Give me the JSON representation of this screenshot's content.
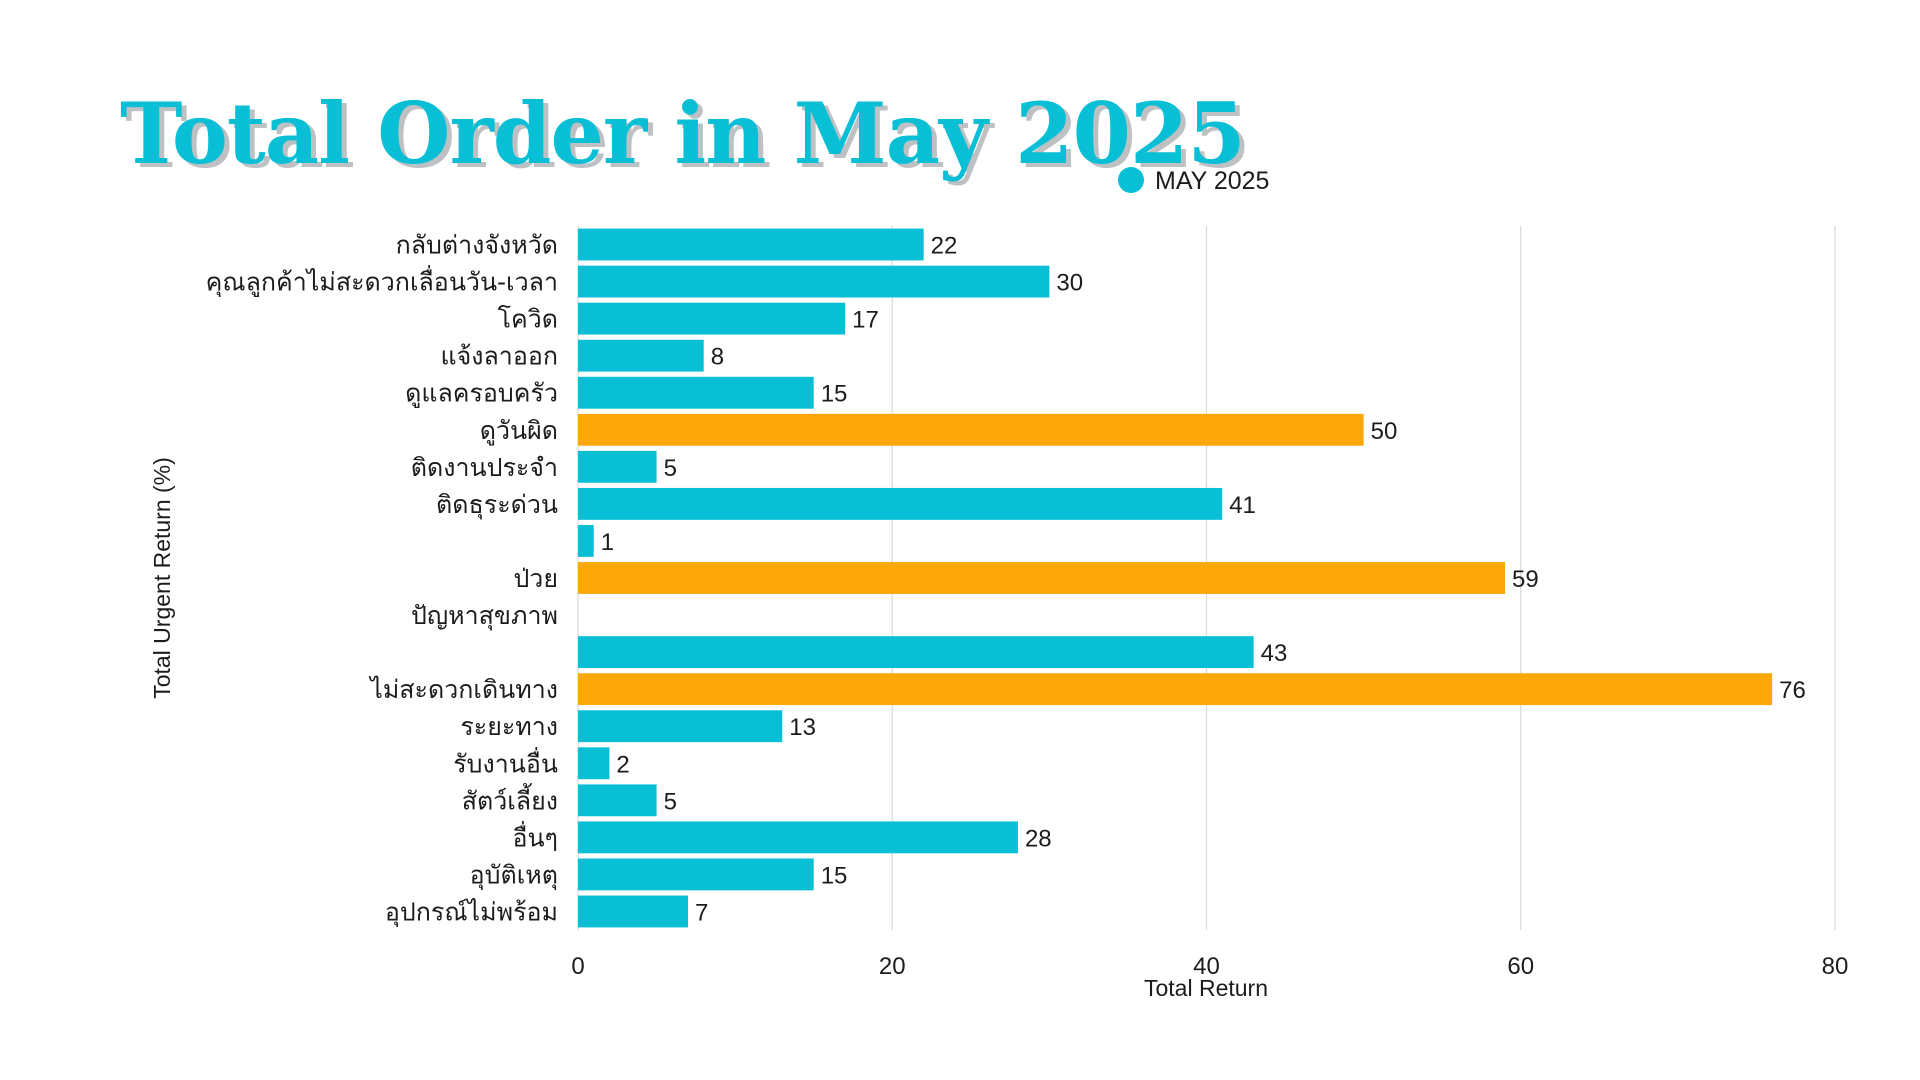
{
  "colors": {
    "primary": "#08bfd6",
    "highlight": "#fba708",
    "text": "#1c1c1c",
    "grid": "#d9d9d9"
  },
  "chart_data": {
    "type": "bar",
    "orientation": "horizontal",
    "title": "Total Order in May 2025",
    "xlabel": "Total Return",
    "ylabel": "Total Urgent Return (%)",
    "legend": {
      "position": "top-right",
      "entries": [
        "MAY 2025"
      ]
    },
    "xlim": [
      0,
      80
    ],
    "xticks": [
      0,
      20,
      40,
      60,
      80
    ],
    "grid": true,
    "categories": [
      "กลับต่างจังหวัด",
      "คุณลูกค้าไม่สะดวกเลื่อนวัน-เวลา",
      "โควิด",
      "แจ้งลาออก",
      "ดูแลครอบครัว",
      "ดูวันผิด",
      "ติดงานประจำ",
      "ติดธุระด่วน",
      "",
      "ป่วย",
      "ปัญหาสุขภาพ",
      "",
      "ไม่สะดวกเดินทาง",
      "ระยะทาง",
      "รับงานอื่น",
      "สัตว์เลี้ยง",
      "อื่นๆ",
      "อุบัติเหตุ",
      "อุปกรณ์ไม่พร้อม"
    ],
    "series": [
      {
        "name": "MAY 2025",
        "values": [
          22,
          30,
          17,
          8,
          15,
          50,
          5,
          41,
          1,
          59,
          null,
          43,
          76,
          13,
          2,
          5,
          28,
          15,
          7
        ],
        "highlighted": [
          false,
          false,
          false,
          false,
          false,
          true,
          false,
          false,
          false,
          true,
          false,
          false,
          true,
          false,
          false,
          false,
          false,
          false,
          false
        ]
      }
    ]
  }
}
